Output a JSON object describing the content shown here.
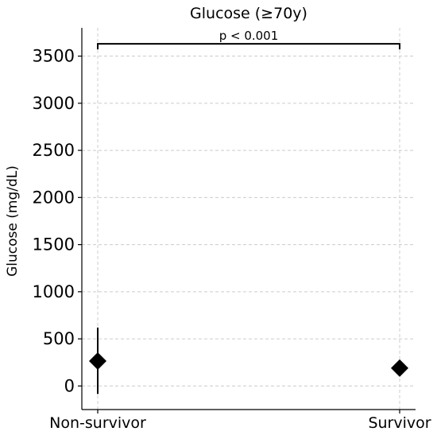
{
  "chart_data": {
    "type": "scatter",
    "title": "Glucose (≥70y)",
    "ylabel": "Glucose (mg/dL)",
    "xlabel": "",
    "categories": [
      "Non-survivor",
      "Survivor"
    ],
    "ylim": [
      -250,
      3800
    ],
    "yticks": [
      0,
      500,
      1000,
      1500,
      2000,
      2500,
      3000,
      3500
    ],
    "grid": true,
    "marker": "diamond",
    "points": [
      {
        "category": "Non-survivor",
        "value": 265,
        "err_low": -85,
        "err_high": 620
      },
      {
        "category": "Survivor",
        "value": 190
      }
    ],
    "annotation": {
      "text": "p < 0.001",
      "y": 3630,
      "from": "Non-survivor",
      "to": "Survivor"
    }
  }
}
